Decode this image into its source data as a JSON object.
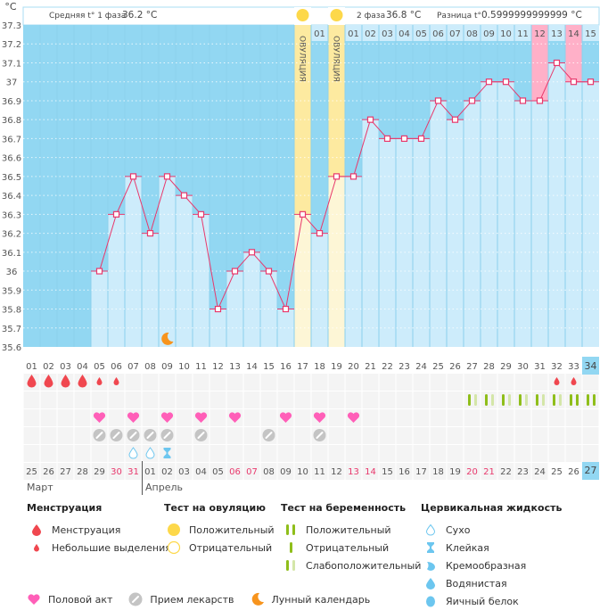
{
  "header": {
    "unit": "°C",
    "phase1_label": "Средняя t° 1 фаза",
    "phase1_value": "36.2 °C",
    "phase2_label": "2 фаза",
    "phase2_value": "36.8 °C",
    "diff_label": "Разница t°",
    "diff_value": "0.5999999999999 °C"
  },
  "colors": {
    "sky": "#92d7f2",
    "bar": "#cdecfb",
    "ovulation": "#fdeaa0",
    "ovulation_light": "#fdf6d6",
    "pink": "#ffb0c8",
    "line": "#e8386c",
    "header_bg": "#cdecfb",
    "today": "#92d7f2"
  },
  "chart_data": {
    "type": "line",
    "title": "",
    "ylabel": "°C",
    "ylim": [
      35.6,
      37.3
    ],
    "yticks": [
      "37.3",
      "37.2",
      "37.1",
      "37",
      "36.9",
      "36.8",
      "36.7",
      "36.6",
      "36.5",
      "36.4",
      "36.3",
      "36.2",
      "36.1",
      "36",
      "35.9",
      "35.8",
      "35.7",
      "35.6"
    ],
    "grid": true,
    "cycle_days": [
      "01",
      "02",
      "03",
      "04",
      "05",
      "06",
      "07",
      "08",
      "09",
      "10",
      "11",
      "12",
      "13",
      "14",
      "15",
      "16",
      "17",
      "18",
      "19",
      "20",
      "21",
      "22",
      "23",
      "24",
      "25",
      "26",
      "27",
      "28",
      "29",
      "30",
      "31",
      "32",
      "33",
      "34"
    ],
    "temperatures": [
      null,
      null,
      null,
      null,
      36.0,
      36.3,
      36.5,
      36.2,
      36.5,
      36.4,
      36.3,
      35.8,
      36.0,
      36.1,
      36.0,
      35.8,
      36.3,
      36.2,
      36.5,
      36.5,
      36.8,
      36.7,
      36.7,
      36.7,
      36.9,
      36.8,
      36.9,
      37.0,
      37.0,
      36.9,
      36.9,
      37.1,
      37.0,
      37.0
    ],
    "ovulation_days": [
      17,
      19
    ],
    "ovulation_label": "ОВУЛЯЦИЯ",
    "top_header_labels": {
      "18": "01",
      "20": "01",
      "21": "02",
      "22": "03",
      "23": "04",
      "24": "05",
      "25": "06",
      "26": "07",
      "27": "08",
      "28": "09",
      "29": "10",
      "30": "11",
      "31": "12",
      "32": "13",
      "33": "14",
      "34": "15"
    },
    "pink_header_days": [
      31,
      33
    ],
    "moon_day": 9,
    "today_cycle_day": 34
  },
  "rows": {
    "menstruation": {
      "5": "light",
      "6": "light",
      "1": "heavy",
      "2": "heavy",
      "3": "heavy",
      "4": "heavy",
      "32": "light",
      "33": "light"
    },
    "pregnancy_tests": {
      "27": "weak",
      "28": "weak",
      "29": "weak",
      "30": "weak",
      "31": "weak",
      "32": "weak",
      "33": "positive",
      "34": "positive"
    },
    "intercourse_days": [
      5,
      7,
      9,
      11,
      13,
      16,
      18,
      20
    ],
    "medication_days": [
      5,
      6,
      7,
      8,
      9,
      11,
      15,
      18
    ],
    "cervical_fluid": {
      "7": "dry",
      "8": "dry",
      "9": "sticky"
    }
  },
  "calendar": {
    "dates": [
      "25",
      "26",
      "27",
      "28",
      "29",
      "30",
      "31",
      "01",
      "02",
      "03",
      "04",
      "05",
      "06",
      "07",
      "08",
      "09",
      "10",
      "11",
      "12",
      "13",
      "14",
      "15",
      "16",
      "17",
      "18",
      "19",
      "20",
      "21",
      "22",
      "23",
      "24",
      "25",
      "26",
      "27"
    ],
    "weekend_idx": [
      5,
      6,
      12,
      13,
      19,
      20,
      26,
      27
    ],
    "months": [
      {
        "label": "Март",
        "start": 0
      },
      {
        "label": "Апрель",
        "start": 7
      }
    ]
  },
  "legend": {
    "menstruation": {
      "title": "Менструация",
      "items": [
        "Менструация",
        "Небольшие выделения"
      ]
    },
    "ovulation_test": {
      "title": "Тест на овуляцию",
      "items": [
        "Положительный",
        "Отрицательный"
      ]
    },
    "pregnancy_test": {
      "title": "Тест на беременность",
      "items": [
        "Положительный",
        "Отрицательный",
        "Слабоположительный"
      ]
    },
    "cervical_fluid": {
      "title": "Цервикальная жидкость",
      "items": [
        "Сухо",
        "Клейкая",
        "Кремообразная",
        "Водянистая",
        "Яичный белок"
      ]
    },
    "bottom": [
      "Половой акт",
      "Прием лекарств",
      "Лунный календарь"
    ]
  }
}
